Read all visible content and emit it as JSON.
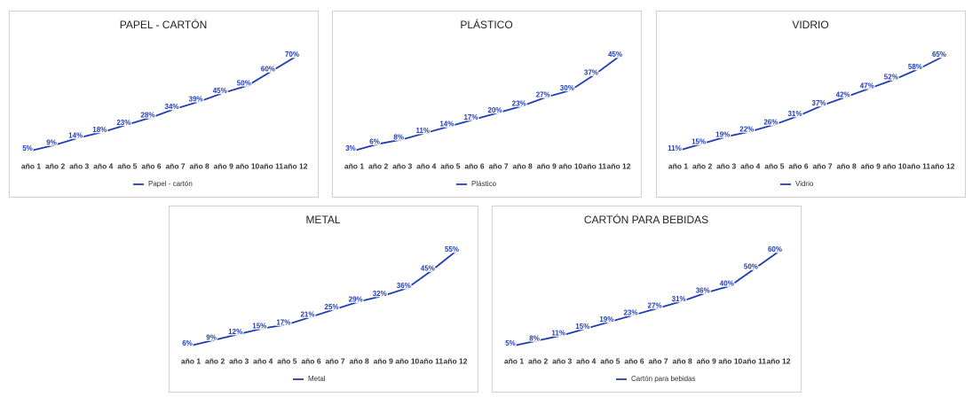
{
  "chart_data": [
    {
      "type": "line",
      "title": "PAPEL - CARTÓN",
      "categories": [
        "año 1",
        "año 2",
        "año 3",
        "año 4",
        "año 5",
        "año 6",
        "año 7",
        "año 8",
        "año 9",
        "año 10",
        "año 11",
        "año 12"
      ],
      "series": [
        {
          "name": "Papel - cartón",
          "color": "#1f3cb4",
          "values": [
            5,
            9,
            14,
            18,
            23,
            28,
            34,
            39,
            45,
            50,
            60,
            70
          ],
          "value_labels": [
            "5%",
            "9%",
            "14%",
            "18%",
            "23%",
            "28%",
            "34%",
            "39%",
            "45%",
            "50%",
            "60%",
            "70%"
          ]
        }
      ]
    },
    {
      "type": "line",
      "title": "PLÁSTICO",
      "categories": [
        "año 1",
        "año 2",
        "año 3",
        "año 4",
        "año 5",
        "año 6",
        "año 7",
        "año 8",
        "año 9",
        "año 10",
        "año 11",
        "año 12"
      ],
      "series": [
        {
          "name": "Plástico",
          "color": "#1f3cb4",
          "values": [
            3,
            6,
            8,
            11,
            14,
            17,
            20,
            23,
            27,
            30,
            37,
            45
          ],
          "value_labels": [
            "3%",
            "6%",
            "8%",
            "11%",
            "14%",
            "17%",
            "20%",
            "23%",
            "27%",
            "30%",
            "37%",
            "45%"
          ]
        }
      ]
    },
    {
      "type": "line",
      "title": "VIDRIO",
      "categories": [
        "año 1",
        "año 2",
        "año 3",
        "año 4",
        "año 5",
        "año 6",
        "año 7",
        "año 8",
        "año 9",
        "año 10",
        "año 11",
        "año 12"
      ],
      "series": [
        {
          "name": "Vidrio",
          "color": "#1f3cb4",
          "values": [
            11,
            15,
            19,
            22,
            26,
            31,
            37,
            42,
            47,
            52,
            58,
            65
          ],
          "value_labels": [
            "11%",
            "15%",
            "19%",
            "22%",
            "26%",
            "31%",
            "37%",
            "42%",
            "47%",
            "52%",
            "58%",
            "65%"
          ]
        }
      ]
    },
    {
      "type": "line",
      "title": "METAL",
      "categories": [
        "año 1",
        "año 2",
        "año 3",
        "año 4",
        "año 5",
        "año 6",
        "año 7",
        "año 8",
        "año 9",
        "año 10",
        "año 11",
        "año 12"
      ],
      "series": [
        {
          "name": "Metal",
          "color": "#1f3cb4",
          "values": [
            6,
            9,
            12,
            15,
            17,
            21,
            25,
            29,
            32,
            36,
            45,
            55
          ],
          "value_labels": [
            "6%",
            "9%",
            "12%",
            "15%",
            "17%",
            "21%",
            "25%",
            "29%",
            "32%",
            "36%",
            "45%",
            "55%"
          ]
        }
      ]
    },
    {
      "type": "line",
      "title": "CARTÓN PARA BEBIDAS",
      "categories": [
        "año 1",
        "año 2",
        "año 3",
        "año 4",
        "año 5",
        "año 6",
        "año 7",
        "año 8",
        "año 9",
        "año 10",
        "año 11",
        "año 12"
      ],
      "series": [
        {
          "name": "Cartón para bebidas",
          "color": "#1f3cb4",
          "values": [
            5,
            8,
            11,
            15,
            19,
            23,
            27,
            31,
            36,
            40,
            50,
            60
          ],
          "value_labels": [
            "5%",
            "8%",
            "11%",
            "15%",
            "19%",
            "23%",
            "27%",
            "31%",
            "36%",
            "40%",
            "50%",
            "60%"
          ]
        }
      ]
    }
  ]
}
